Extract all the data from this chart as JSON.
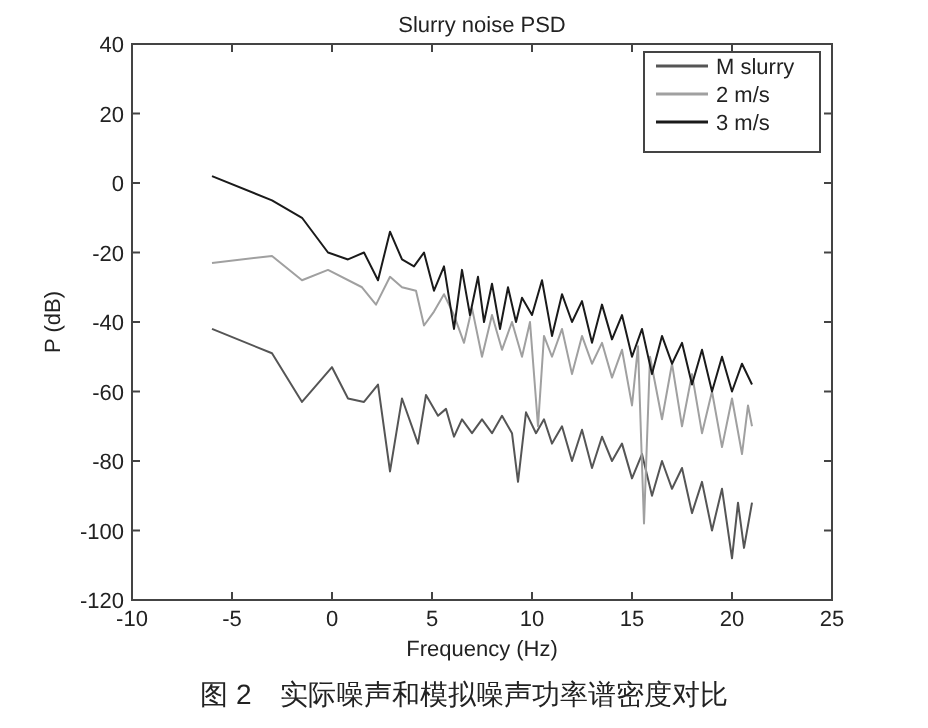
{
  "chart_data": {
    "type": "line",
    "title": "Slurry noise PSD",
    "xlabel": "Frequency (Hz)",
    "ylabel": "P (dB)",
    "xlim": [
      -10,
      25
    ],
    "xticks": [
      -10,
      -5,
      0,
      5,
      10,
      15,
      20,
      25
    ],
    "ylim": [
      -120,
      40
    ],
    "yticks": [
      -120,
      -100,
      -80,
      -60,
      -40,
      -20,
      0,
      20,
      40
    ],
    "grid": false,
    "legend": "top right",
    "line_style": "solid",
    "annotations": [
      "图 2　实际噪声和模拟噪声功率谱密度对比"
    ],
    "series": [
      {
        "name": "M slurry",
        "color": "#555555",
        "x": [
          -6,
          -3,
          -1.5,
          0,
          0.8,
          1.6,
          2.3,
          2.9,
          3.5,
          4.3,
          4.7,
          5.3,
          5.7,
          6.1,
          6.5,
          7.0,
          7.5,
          8.0,
          8.5,
          9.0,
          9.3,
          9.7,
          10.2,
          10.6,
          11.0,
          11.5,
          12,
          12.5,
          13,
          13.5,
          14,
          14.5,
          15,
          15.5,
          16,
          16.5,
          17,
          17.5,
          18,
          18.5,
          19,
          19.5,
          20,
          20.3,
          20.6,
          21
        ],
        "values": [
          -42,
          -49,
          -63,
          -53,
          -62,
          -63,
          -58,
          -83,
          -62,
          -75,
          -61,
          -67,
          -65,
          -73,
          -68,
          -72,
          -68,
          -72,
          -67,
          -72,
          -86,
          -66,
          -72,
          -68,
          -75,
          -70,
          -80,
          -71,
          -82,
          -73,
          -80,
          -75,
          -85,
          -78,
          -90,
          -80,
          -88,
          -82,
          -95,
          -86,
          -100,
          -88,
          -108,
          -92,
          -105,
          -92
        ]
      },
      {
        "name": "2 m/s",
        "color": "#a0a0a0",
        "x": [
          -6,
          -3,
          -1.5,
          -0.2,
          1.5,
          2.2,
          2.9,
          3.5,
          4.2,
          4.6,
          5.1,
          5.6,
          6.1,
          6.6,
          7.0,
          7.5,
          8.0,
          8.5,
          9.0,
          9.5,
          9.9,
          10.3,
          10.6,
          11,
          11.5,
          12,
          12.5,
          13,
          13.5,
          14,
          14.5,
          15,
          15.3,
          15.6,
          15.9,
          16.5,
          17,
          17.5,
          18,
          18.5,
          19,
          19.5,
          20,
          20.5,
          20.8,
          21
        ],
        "values": [
          -23,
          -21,
          -28,
          -25,
          -30,
          -35,
          -27,
          -30,
          -31,
          -41,
          -37,
          -32,
          -38,
          -46,
          -36,
          -50,
          -38,
          -48,
          -40,
          -50,
          -40,
          -70,
          -44,
          -50,
          -42,
          -55,
          -44,
          -52,
          -46,
          -56,
          -48,
          -64,
          -47,
          -98,
          -50,
          -68,
          -52,
          -70,
          -55,
          -72,
          -60,
          -76,
          -62,
          -78,
          -64,
          -70
        ]
      },
      {
        "name": "3 m/s",
        "color": "#1a1a1a",
        "x": [
          -6,
          -3,
          -1.5,
          -0.2,
          0.8,
          1.6,
          2.3,
          2.9,
          3.5,
          4.1,
          4.6,
          5.1,
          5.6,
          6.1,
          6.5,
          6.9,
          7.3,
          7.6,
          8.0,
          8.4,
          8.8,
          9.2,
          9.5,
          10,
          10.5,
          11,
          11.5,
          12,
          12.5,
          13,
          13.5,
          14,
          14.5,
          15,
          15.5,
          16,
          16.5,
          17,
          17.5,
          18,
          18.5,
          19,
          19.5,
          20,
          20.5,
          21
        ],
        "values": [
          2,
          -5,
          -10,
          -20,
          -22,
          -20,
          -28,
          -14,
          -22,
          -24,
          -20,
          -31,
          -24,
          -42,
          -25,
          -38,
          -27,
          -40,
          -29,
          -42,
          -30,
          -40,
          -33,
          -38,
          -28,
          -44,
          -32,
          -40,
          -34,
          -46,
          -35,
          -45,
          -38,
          -50,
          -42,
          -55,
          -44,
          -52,
          -46,
          -58,
          -48,
          -60,
          -50,
          -60,
          -52,
          -58
        ]
      }
    ]
  }
}
